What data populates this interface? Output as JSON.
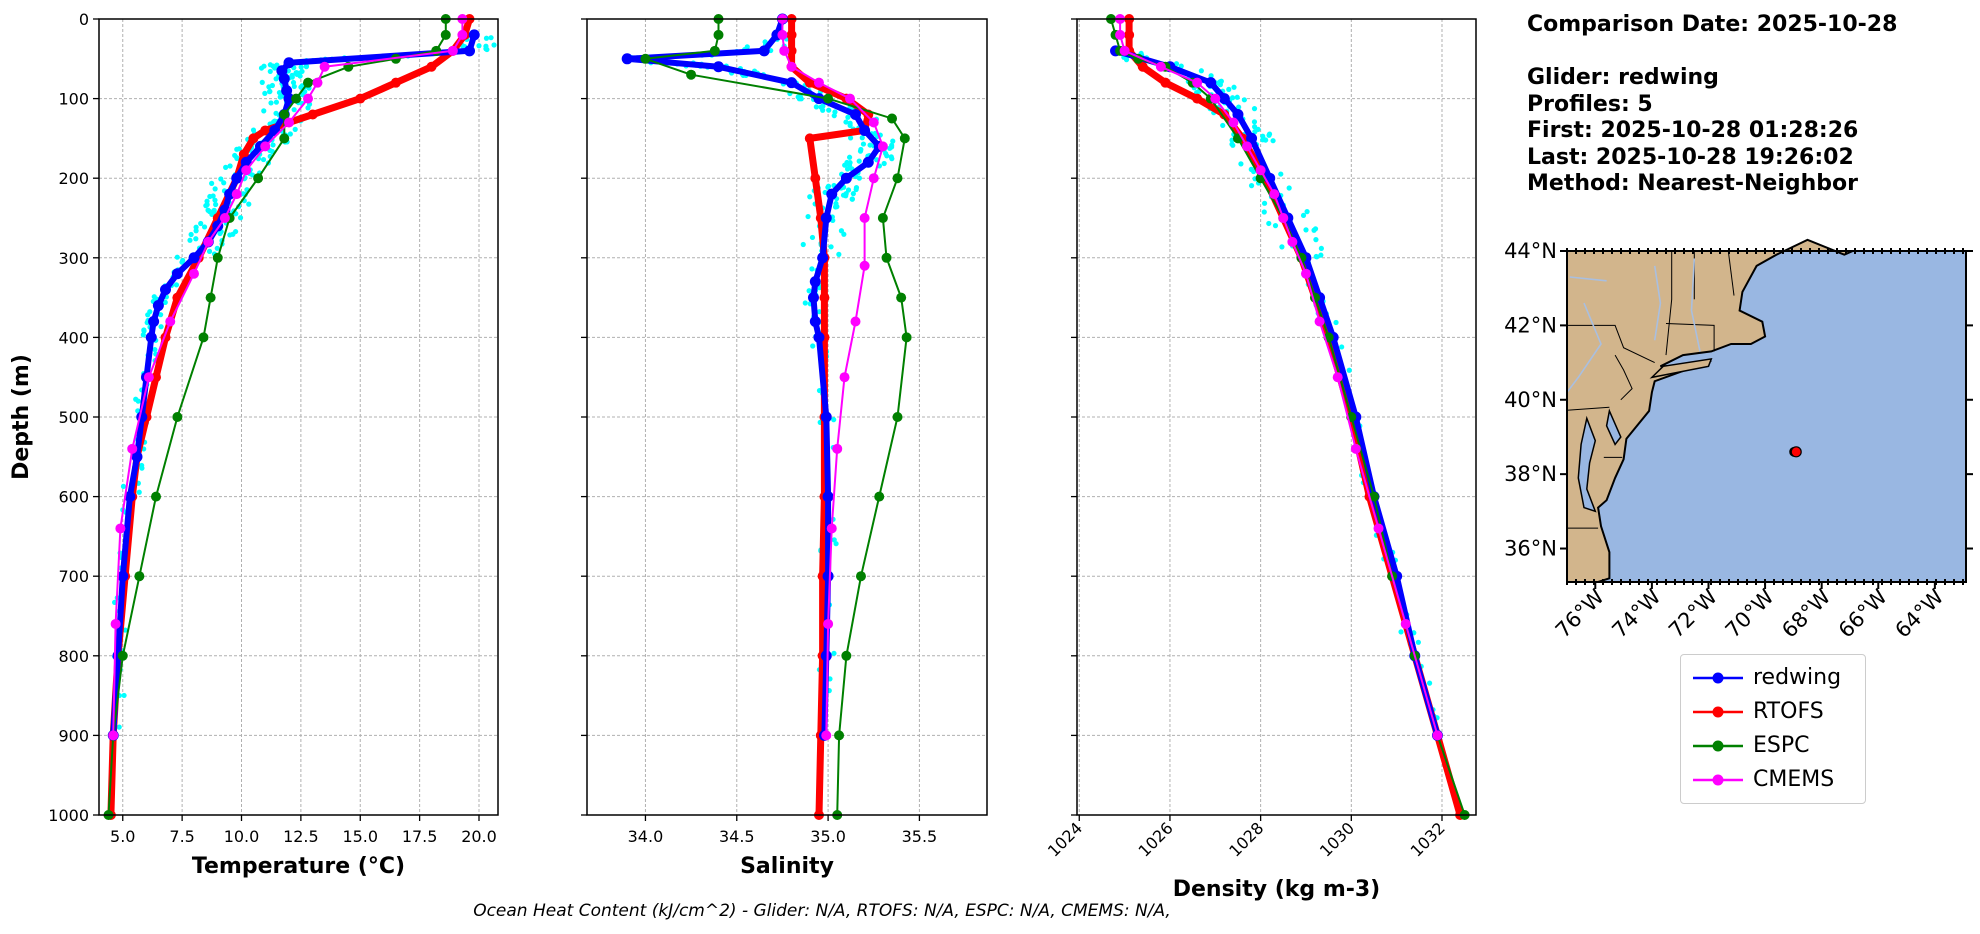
{
  "chart_data": {
    "type": "line",
    "y_axis": {
      "label": "Depth (m)",
      "range": [
        1000,
        0
      ],
      "inverted": true,
      "ticks": [
        "0",
        "100",
        "200",
        "300",
        "400",
        "500",
        "600",
        "700",
        "800",
        "900",
        "1000"
      ]
    },
    "panels": [
      {
        "id": "temperature",
        "xlabel": "Temperature (°C)",
        "xlim": [
          4.0,
          20.8
        ],
        "xticks": [
          "5.0",
          "7.5",
          "10.0",
          "12.5",
          "15.0",
          "17.5",
          "20.0"
        ],
        "glider_scatter_color": "#00ffff",
        "series": [
          {
            "name": "redwing",
            "color": "#0000ff",
            "depth": [
              20,
              40,
              55,
              65,
              75,
              90,
              100,
              120,
              140,
              160,
              180,
              200,
              220,
              240,
              260,
              280,
              300,
              320,
              340,
              360,
              380,
              400,
              450,
              500,
              550,
              600,
              700,
              800,
              900
            ],
            "values": [
              19.8,
              19.6,
              12.0,
              11.7,
              11.8,
              11.9,
              12.0,
              11.8,
              11.4,
              10.8,
              10.2,
              9.8,
              9.5,
              9.3,
              9.0,
              8.6,
              8.0,
              7.3,
              6.8,
              6.5,
              6.3,
              6.2,
              6.0,
              5.8,
              5.6,
              5.3,
              5.0,
              4.8,
              4.6
            ]
          },
          {
            "name": "RTOFS",
            "color": "#ff0000",
            "depth": [
              0,
              20,
              40,
              60,
              80,
              100,
              120,
              140,
              150,
              170,
              200,
              250,
              300,
              350,
              400,
              450,
              500,
              550,
              600,
              700,
              800,
              900,
              1000
            ],
            "values": [
              19.6,
              19.4,
              18.9,
              18.0,
              16.5,
              15.0,
              13.0,
              11.0,
              10.5,
              10.1,
              9.8,
              9.0,
              8.2,
              7.3,
              6.8,
              6.4,
              6.0,
              5.6,
              5.4,
              5.1,
              4.8,
              4.6,
              4.5
            ]
          },
          {
            "name": "ESPC",
            "color": "#008000",
            "depth": [
              0,
              20,
              40,
              50,
              60,
              80,
              100,
              120,
              150,
              200,
              250,
              300,
              350,
              400,
              500,
              600,
              700,
              800,
              900,
              1000
            ],
            "values": [
              18.6,
              18.6,
              18.2,
              16.5,
              14.5,
              12.8,
              12.3,
              11.8,
              11.8,
              10.7,
              9.5,
              9.0,
              8.7,
              8.4,
              7.3,
              6.4,
              5.7,
              5.0,
              4.6,
              4.4
            ]
          },
          {
            "name": "CMEMS",
            "color": "#ff00ff",
            "depth": [
              0,
              20,
              40,
              60,
              80,
              100,
              130,
              160,
              190,
              220,
              250,
              280,
              320,
              380,
              450,
              540,
              640,
              760,
              900
            ],
            "values": [
              19.3,
              19.3,
              18.9,
              13.5,
              13.2,
              12.8,
              12.0,
              11.0,
              10.2,
              9.8,
              9.3,
              8.6,
              8.0,
              7.0,
              6.1,
              5.4,
              4.9,
              4.7,
              4.6
            ]
          }
        ]
      },
      {
        "id": "salinity",
        "xlabel": "Salinity",
        "xlim": [
          33.68,
          35.87
        ],
        "xticks": [
          "34.0",
          "34.5",
          "35.0",
          "35.5"
        ],
        "glider_scatter_color": "#00ffff",
        "series": [
          {
            "name": "redwing",
            "color": "#0000ff",
            "depth": [
              0,
              20,
              40,
              50,
              60,
              80,
              100,
              120,
              140,
              160,
              180,
              200,
              220,
              250,
              300,
              330,
              350,
              380,
              400,
              500,
              600,
              700,
              800,
              900
            ],
            "values": [
              34.75,
              34.72,
              34.65,
              33.9,
              34.4,
              34.8,
              34.95,
              35.15,
              35.2,
              35.28,
              35.22,
              35.1,
              35.02,
              34.99,
              34.97,
              34.93,
              34.92,
              34.93,
              34.95,
              34.99,
              35.0,
              35.0,
              34.99,
              34.98
            ]
          },
          {
            "name": "RTOFS",
            "color": "#ff0000",
            "depth": [
              0,
              20,
              40,
              60,
              80,
              100,
              120,
              140,
              150,
              200,
              250,
              300,
              350,
              400,
              500,
              600,
              700,
              800,
              900,
              1000
            ],
            "values": [
              34.8,
              34.8,
              34.8,
              34.8,
              34.9,
              35.1,
              35.22,
              35.2,
              34.9,
              34.93,
              34.96,
              34.98,
              34.98,
              34.98,
              34.98,
              34.98,
              34.97,
              34.97,
              34.96,
              34.95
            ]
          },
          {
            "name": "ESPC",
            "color": "#008000",
            "depth": [
              0,
              20,
              40,
              50,
              70,
              100,
              125,
              150,
              200,
              250,
              300,
              350,
              400,
              500,
              600,
              700,
              800,
              900,
              1000
            ],
            "values": [
              34.4,
              34.4,
              34.38,
              34.0,
              34.25,
              35.0,
              35.35,
              35.42,
              35.38,
              35.3,
              35.32,
              35.4,
              35.43,
              35.38,
              35.28,
              35.18,
              35.1,
              35.06,
              35.05
            ]
          },
          {
            "name": "CMEMS",
            "color": "#ff00ff",
            "depth": [
              0,
              20,
              40,
              60,
              80,
              100,
              130,
              160,
              200,
              250,
              310,
              380,
              450,
              540,
              640,
              760,
              900
            ],
            "values": [
              34.75,
              34.75,
              34.76,
              34.8,
              34.95,
              35.12,
              35.25,
              35.3,
              35.25,
              35.2,
              35.2,
              35.15,
              35.09,
              35.05,
              35.02,
              35.0,
              34.99
            ]
          }
        ]
      },
      {
        "id": "density",
        "xlabel": "Density (kg m-3)",
        "xlim": [
          1023.95,
          1032.75
        ],
        "xticks": [
          "1024",
          "1026",
          "1028",
          "1030",
          "1032"
        ],
        "xticks_rotated": true,
        "glider_scatter_color": "#00ffff",
        "series": [
          {
            "name": "redwing",
            "color": "#0000ff",
            "depth": [
              40,
              60,
              80,
              100,
              120,
              150,
              200,
              250,
              300,
              350,
              400,
              500,
              600,
              700,
              800,
              900
            ],
            "values": [
              1024.8,
              1026.0,
              1026.9,
              1027.2,
              1027.5,
              1027.8,
              1028.2,
              1028.6,
              1029.0,
              1029.3,
              1029.6,
              1030.1,
              1030.5,
              1031.0,
              1031.4,
              1031.9
            ]
          },
          {
            "name": "RTOFS",
            "color": "#ff0000",
            "depth": [
              0,
              20,
              40,
              60,
              80,
              100,
              120,
              150,
              200,
              250,
              300,
              350,
              400,
              500,
              600,
              700,
              800,
              900,
              1000
            ],
            "values": [
              1025.1,
              1025.1,
              1025.1,
              1025.4,
              1025.9,
              1026.6,
              1027.2,
              1027.6,
              1028.1,
              1028.5,
              1028.9,
              1029.2,
              1029.5,
              1030.0,
              1030.4,
              1030.9,
              1031.4,
              1031.9,
              1032.4
            ]
          },
          {
            "name": "ESPC",
            "color": "#008000",
            "depth": [
              0,
              20,
              40,
              50,
              60,
              80,
              100,
              150,
              200,
              250,
              300,
              350,
              400,
              500,
              600,
              700,
              800,
              900,
              1000
            ],
            "values": [
              1024.7,
              1024.8,
              1024.9,
              1025.3,
              1025.9,
              1026.5,
              1026.9,
              1027.5,
              1028.0,
              1028.5,
              1028.9,
              1029.2,
              1029.5,
              1030.0,
              1030.5,
              1030.9,
              1031.4,
              1031.9,
              1032.5
            ]
          },
          {
            "name": "CMEMS",
            "color": "#ff00ff",
            "depth": [
              0,
              20,
              40,
              60,
              80,
              100,
              130,
              160,
              190,
              220,
              250,
              280,
              320,
              380,
              450,
              540,
              640,
              760,
              900
            ],
            "values": [
              1024.9,
              1024.9,
              1025.0,
              1025.8,
              1026.6,
              1027.0,
              1027.4,
              1027.7,
              1028.0,
              1028.3,
              1028.5,
              1028.7,
              1029.0,
              1029.3,
              1029.7,
              1030.1,
              1030.6,
              1031.2,
              1031.9
            ]
          }
        ]
      }
    ],
    "map": {
      "lat_ticks": [
        "44°N",
        "42°N",
        "40°N",
        "38°N",
        "36°N"
      ],
      "lon_ticks": [
        "76°W",
        "74°W",
        "72°W",
        "70°W",
        "68°W",
        "66°W",
        "64°W"
      ],
      "lat_range": [
        35.1,
        44.0
      ],
      "lon_range": [
        -77.0,
        -62.9
      ],
      "marker_lat": 38.6,
      "marker_lon": -68.9,
      "ocean_color": "#99b7e2",
      "land_color": "#d2b58c",
      "marker_color": "#ff0000"
    }
  },
  "info": {
    "comparison_date": "Comparison Date: 2025-10-28",
    "glider": "Glider: redwing",
    "profiles": "Profiles: 5",
    "first": "First: 2025-10-28 01:28:26",
    "last": "Last: 2025-10-28 19:26:02",
    "method": "Method: Nearest-Neighbor"
  },
  "legend": [
    {
      "label": "redwing",
      "color": "#0000ff"
    },
    {
      "label": "RTOFS",
      "color": "#ff0000"
    },
    {
      "label": "ESPC",
      "color": "#008000"
    },
    {
      "label": "CMEMS",
      "color": "#ff00ff"
    }
  ],
  "footer": "Ocean Heat Content (kJ/cm^2) - Glider: N/A,  RTOFS: N/A,  ESPC: N/A,  CMEMS: N/A,"
}
